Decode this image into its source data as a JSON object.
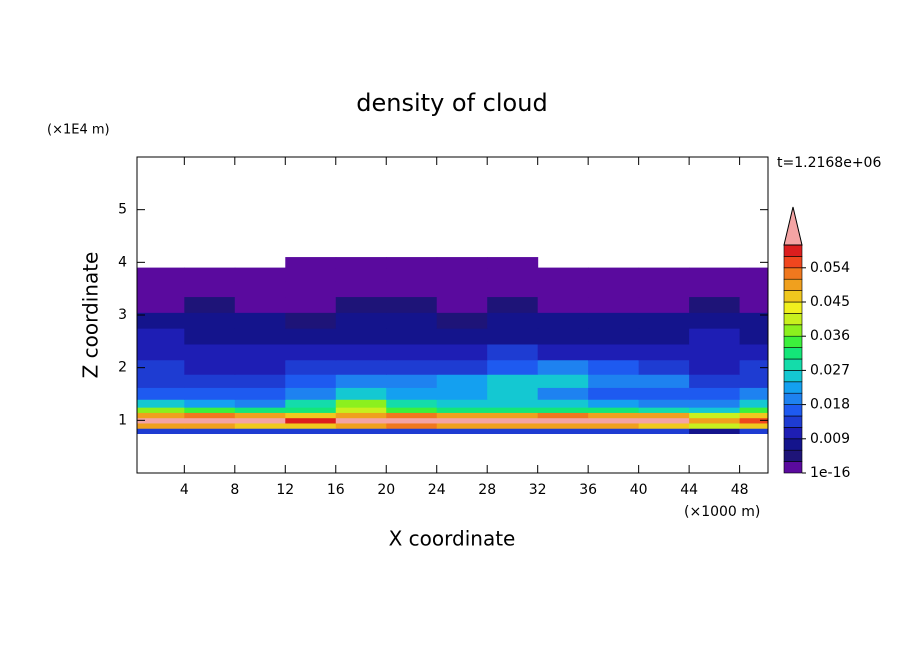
{
  "chart_data": {
    "type": "contour",
    "title": "density of cloud",
    "x_label": "X coordinate",
    "y_label": "Z coordinate",
    "x_unit": "(×1000 m)",
    "y_unit": "(×1E4 m)",
    "time_label": "t=1.2168e+06",
    "xlim": [
      0.25,
      50.25
    ],
    "ylim": [
      0,
      6
    ],
    "xticks": [
      4,
      8,
      12,
      16,
      20,
      24,
      28,
      32,
      36,
      40,
      44,
      48
    ],
    "yticks": [
      1,
      2,
      3,
      4,
      5
    ],
    "x": [
      2,
      6,
      10,
      14,
      18,
      22,
      26,
      30,
      34,
      38,
      42,
      46,
      50
    ],
    "z": [
      0.8,
      0.9,
      1.0,
      1.1,
      1.2,
      1.3,
      1.5,
      1.75,
      2.0,
      2.3,
      2.6,
      2.9,
      3.2,
      3.5,
      3.8,
      4.0
    ],
    "values": [
      [
        0.012,
        0.012,
        0.012,
        0.012,
        0.012,
        0.012,
        0.012,
        0.012,
        0.012,
        0.012,
        0.012,
        0.006,
        0.012
      ],
      [
        0.048,
        0.05,
        0.047,
        0.046,
        0.05,
        0.052,
        0.05,
        0.048,
        0.05,
        0.05,
        0.047,
        0.04,
        0.045
      ],
      [
        0.06,
        0.062,
        0.06,
        0.058,
        0.061,
        0.06,
        0.062,
        0.06,
        0.061,
        0.06,
        0.06,
        0.05,
        0.055
      ],
      [
        0.05,
        0.052,
        0.048,
        0.045,
        0.05,
        0.052,
        0.05,
        0.05,
        0.052,
        0.05,
        0.048,
        0.04,
        0.046
      ],
      [
        0.036,
        0.035,
        0.03,
        0.032,
        0.04,
        0.033,
        0.03,
        0.032,
        0.03,
        0.03,
        0.028,
        0.025,
        0.035
      ],
      [
        0.025,
        0.022,
        0.02,
        0.028,
        0.036,
        0.028,
        0.025,
        0.026,
        0.024,
        0.022,
        0.02,
        0.02,
        0.025
      ],
      [
        0.016,
        0.015,
        0.016,
        0.02,
        0.025,
        0.022,
        0.022,
        0.024,
        0.018,
        0.015,
        0.016,
        0.016,
        0.018
      ],
      [
        0.013,
        0.012,
        0.014,
        0.016,
        0.02,
        0.02,
        0.022,
        0.024,
        0.025,
        0.02,
        0.018,
        0.014,
        0.013
      ],
      [
        0.012,
        0.011,
        0.01,
        0.012,
        0.012,
        0.013,
        0.014,
        0.016,
        0.018,
        0.016,
        0.012,
        0.01,
        0.012
      ],
      [
        0.011,
        0.01,
        0.009,
        0.01,
        0.01,
        0.01,
        0.011,
        0.012,
        0.011,
        0.011,
        0.01,
        0.01,
        0.01
      ],
      [
        0.009,
        0.008,
        0.007,
        0.008,
        0.008,
        0.007,
        0.008,
        0.008,
        0.008,
        0.008,
        0.008,
        0.009,
        0.008
      ],
      [
        0.007,
        0.006,
        0.006,
        0.005,
        0.006,
        0.006,
        0.005,
        0.006,
        0.006,
        0.006,
        0.007,
        0.007,
        0.006
      ],
      [
        0.002,
        0.003,
        0.002,
        0.002,
        0.004,
        0.003,
        0.002,
        0.003,
        0.002,
        0.002,
        0.002,
        0.003,
        0.002
      ],
      [
        0.001,
        0.001,
        0.001,
        0.001,
        0.001,
        0.001,
        0.001,
        0.001,
        0.001,
        0.001,
        0.001,
        0.001,
        0.001
      ],
      [
        0.001,
        0.001,
        0.001,
        0.001,
        0.001,
        0.001,
        0.001,
        0.001,
        0.001,
        0.001,
        0.001,
        0.001,
        0.001
      ],
      [
        null,
        null,
        null,
        0.001,
        0.001,
        0.001,
        0.001,
        0.001,
        null,
        null,
        null,
        null,
        null
      ]
    ],
    "colorbar": {
      "levels": [
        1e-16,
        0.003,
        0.006,
        0.009,
        0.012,
        0.015,
        0.018,
        0.021,
        0.024,
        0.027,
        0.03,
        0.033,
        0.036,
        0.039,
        0.042,
        0.045,
        0.048,
        0.051,
        0.054,
        0.057,
        0.06
      ],
      "colors": [
        "#5a0a9e",
        "#1e1478",
        "#14148c",
        "#1e1eb4",
        "#1e3cd2",
        "#1e5af0",
        "#1e82f0",
        "#14a0f0",
        "#14c8d2",
        "#14dcaa",
        "#14e678",
        "#3cf03c",
        "#8cf01e",
        "#c8f01e",
        "#f0f01e",
        "#f0c81e",
        "#f0a01e",
        "#f0781e",
        "#f0461e",
        "#dc1e1e"
      ],
      "extend_color": "#f4a4a4",
      "ticks": [
        1e-16,
        0.009,
        0.018,
        0.027,
        0.036,
        0.045,
        0.054
      ]
    }
  }
}
